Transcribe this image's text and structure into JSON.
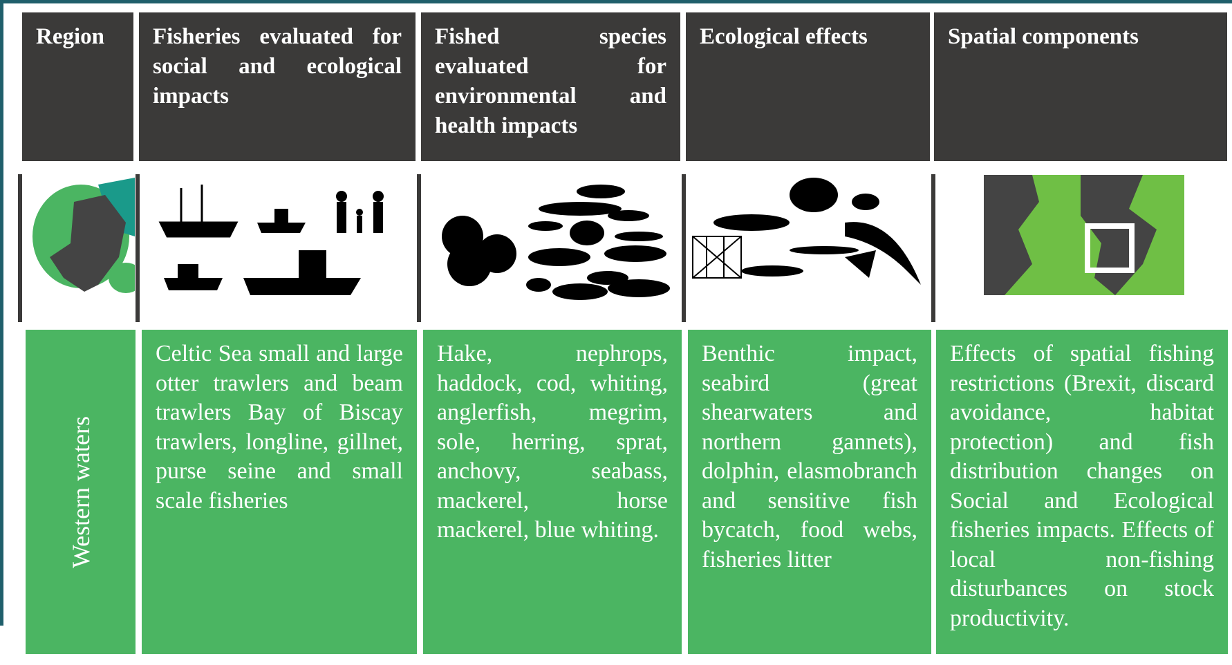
{
  "header": {
    "columns": [
      "Region",
      "Fisheries evaluated for social and ecological impacts",
      "Fished species evaluated for environmental and health impacts",
      "Ecological effects",
      "Spatial components"
    ]
  },
  "rows": [
    {
      "region": "Western waters",
      "cells": [
        "Celtic Sea small and large otter trawlers and beam trawlers Bay of Biscay trawlers, longline, gillnet, purse seine and small scale fisheries",
        "Hake, nephrops, haddock, cod, whiting, anglerfish, megrim, sole, herring, sprat, anchovy, seabass, mackerel, horse mackerel, blue whiting.",
        "Benthic impact, seabird (great shearwaters and northern gannets), dolphin, elasmobranch and sensitive fish bycatch, food webs, fisheries litter",
        "Effects of spatial fishing restrictions (Brexit, discard avoidance, habitat protection) and fish distribution changes on Social and Ecological fisheries impacts. Effects of local non-fishing disturbances on stock productivity."
      ]
    }
  ]
}
